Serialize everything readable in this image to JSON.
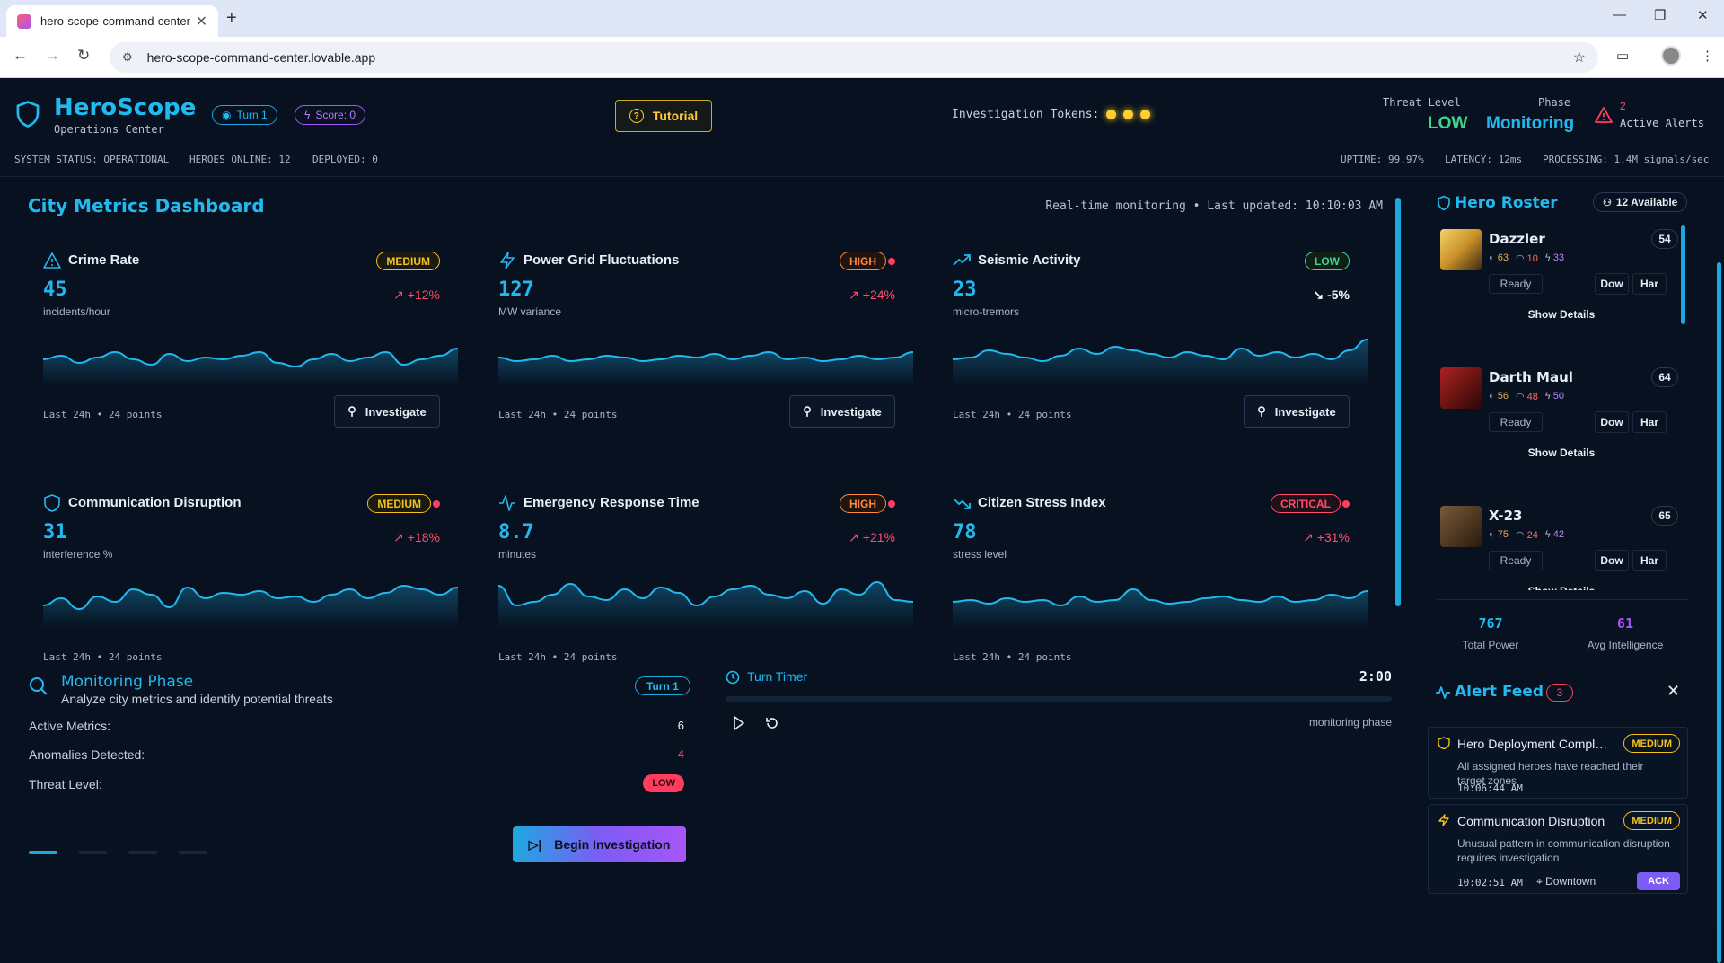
{
  "browser": {
    "tab_title": "hero-scope-command-center",
    "url": "hero-scope-command-center.lovable.app"
  },
  "header": {
    "brand": "HeroScope",
    "brand_sub": "Operations Center",
    "turn": "Turn 1",
    "score": "Score: 0",
    "tutorial": "Tutorial",
    "tokens_label": "Investigation Tokens:",
    "tokens": 3,
    "threat_label": "Threat Level",
    "threat_value": "LOW",
    "phase_label": "Phase",
    "phase_value": "Monitoring",
    "alerts_count": "2",
    "alerts_label": "Active Alerts"
  },
  "status": {
    "system": "SYSTEM STATUS: OPERATIONAL",
    "heroes": "HEROES ONLINE: 12",
    "deployed": "DEPLOYED: 0",
    "uptime": "UPTIME: 99.97%",
    "latency": "LATENCY: 12ms",
    "processing": "PROCESSING: 1.4M signals/sec"
  },
  "dashboard": {
    "title": "City Metrics Dashboard",
    "meta": "Real-time monitoring • Last updated: 10:10:03 AM",
    "footer": "Last 24h • 24 points",
    "investigate": "Investigate",
    "metrics": [
      {
        "title": "Crime Rate",
        "icon": "warning-icon",
        "badge": "MEDIUM",
        "value": "45",
        "unit": "incidents/hour",
        "trend": "+12%",
        "alert_dot": false
      },
      {
        "title": "Power Grid Fluctuations",
        "icon": "lightning-icon",
        "badge": "HIGH",
        "value": "127",
        "unit": "MW variance",
        "trend": "+24%",
        "alert_dot": true
      },
      {
        "title": "Seismic Activity",
        "icon": "trending-up-icon",
        "badge": "LOW",
        "value": "23",
        "unit": "micro-tremors",
        "trend": "-5%",
        "alert_dot": false
      },
      {
        "title": "Communication Disruption",
        "icon": "shield-icon",
        "badge": "MEDIUM",
        "value": "31",
        "unit": "interference %",
        "trend": "+18%",
        "alert_dot": true
      },
      {
        "title": "Emergency Response Time",
        "icon": "activity-icon",
        "badge": "HIGH",
        "value": "8.7",
        "unit": "minutes",
        "trend": "+21%",
        "alert_dot": true
      },
      {
        "title": "Citizen Stress Index",
        "icon": "trending-down-icon",
        "badge": "CRITICAL",
        "value": "78",
        "unit": "stress level",
        "trend": "+31%",
        "alert_dot": true
      }
    ]
  },
  "roster": {
    "title": "Hero Roster",
    "available": "12 Available",
    "ready": "Ready",
    "btn1": "Dow",
    "btn2": "Har",
    "show_details": "Show Details",
    "heroes": [
      {
        "name": "Dazzler",
        "level": "54",
        "s1": "63",
        "s2": "10",
        "s3": "33"
      },
      {
        "name": "Darth Maul",
        "level": "64",
        "s1": "56",
        "s2": "48",
        "s3": "50"
      },
      {
        "name": "X-23",
        "level": "65",
        "s1": "75",
        "s2": "24",
        "s3": "42"
      }
    ],
    "total_power": "767",
    "total_power_label": "Total Power",
    "avg_int": "61",
    "avg_int_label": "Avg Intelligence"
  },
  "monitoring": {
    "title": "Monitoring Phase",
    "subtitle": "Analyze city metrics and identify potential threats",
    "turn": "Turn 1",
    "active_label": "Active Metrics:",
    "active_value": "6",
    "anomalies_label": "Anomalies Detected:",
    "anomalies_value": "4",
    "threat_label": "Threat Level:",
    "threat_value": "LOW",
    "begin": "Begin Investigation"
  },
  "timer": {
    "title": "Turn Timer",
    "value": "2:00",
    "phase": "monitoring phase"
  },
  "alerts": {
    "title": "Alert Feed",
    "count": "3",
    "items": [
      {
        "title": "Hero Deployment Complete",
        "badge": "MEDIUM",
        "desc": "All assigned heroes have reached their target zones",
        "time": "10:06:44 AM",
        "location": ""
      },
      {
        "title": "Communication Disruption",
        "badge": "MEDIUM",
        "desc": "Unusual pattern in communication disruption requires investigation",
        "time": "10:02:51 AM",
        "location": "Downtown",
        "ack": "ACK"
      }
    ]
  },
  "colors": {
    "accent": "#22b8f0",
    "purple": "#a855f7",
    "danger": "#ff3d5e",
    "gold": "#ffc935",
    "green": "#3fd68a"
  }
}
